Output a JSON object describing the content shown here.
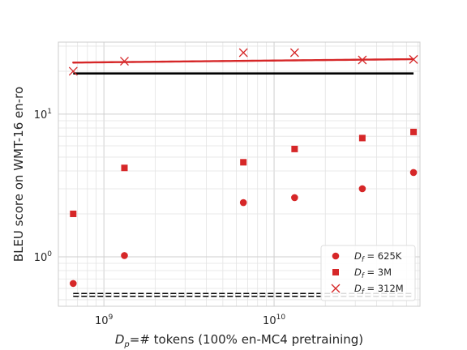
{
  "chart_data": {
    "type": "scatter",
    "xlabel_main": "D",
    "xlabel_sub": "p",
    "xlabel_rest": "=# tokens (100% en-MC4 pretraining)",
    "ylabel": "BLEU score on WMT-16 en-ro",
    "x_scale": "log",
    "y_scale": "log",
    "xlim": [
      540000000,
      72000000000
    ],
    "ylim": [
      0.45,
      32
    ],
    "x_ticks": [
      {
        "value": 1000000000,
        "base": "10",
        "exp": "9"
      },
      {
        "value": 10000000000,
        "base": "10",
        "exp": "10"
      }
    ],
    "y_ticks": [
      {
        "value": 1,
        "base": "10",
        "exp": "0"
      },
      {
        "value": 10,
        "base": "10",
        "exp": "1"
      }
    ],
    "grid": true,
    "legend_position": "lower-right",
    "series": [
      {
        "name_main": "D",
        "name_sub": "f",
        "name_rest": " = 625K",
        "marker": "circle",
        "color": "#d62728",
        "points": [
          {
            "x": 660000000,
            "y": 0.65
          },
          {
            "x": 1320000000,
            "y": 1.02
          },
          {
            "x": 6600000000,
            "y": 2.4
          },
          {
            "x": 13200000000,
            "y": 2.6
          },
          {
            "x": 33000000000,
            "y": 3.0
          },
          {
            "x": 66000000000,
            "y": 3.9
          }
        ],
        "fit": {
          "style": "dotted",
          "width": 2.6,
          "a": -14.43,
          "b": 5.51,
          "c": 0.1414
        },
        "baseline": {
          "y": 0.54,
          "style": "dashed-black-box",
          "width": 3
        }
      },
      {
        "name_main": "D",
        "name_sub": "f",
        "name_rest": " = 3M",
        "marker": "square",
        "color": "#d62728",
        "points": [
          {
            "x": 660000000,
            "y": 2.0
          },
          {
            "x": 1320000000,
            "y": 4.2
          },
          {
            "x": 6600000000,
            "y": 4.6
          },
          {
            "x": 13200000000,
            "y": 5.7
          },
          {
            "x": 33000000000,
            "y": 6.8
          },
          {
            "x": 66000000000,
            "y": 7.5
          }
        ],
        "fit": {
          "style": "dashed",
          "width": 2.6,
          "a": -11.65,
          "b": 4.4,
          "c": 0.1445
        },
        "baseline": {
          "y": 0.54,
          "style": "dashed-black-box",
          "width": 3
        }
      },
      {
        "name_main": "D",
        "name_sub": "f",
        "name_rest": " = 312M",
        "marker": "x",
        "color": "#d62728",
        "points": [
          {
            "x": 660000000,
            "y": 20.0
          },
          {
            "x": 1320000000,
            "y": 23.5
          },
          {
            "x": 6600000000,
            "y": 27.0
          },
          {
            "x": 13200000000,
            "y": 27.0
          },
          {
            "x": 33000000000,
            "y": 24.0
          },
          {
            "x": 66000000000,
            "y": 24.2
          }
        ],
        "fit": {
          "style": "solid",
          "linear_log": true,
          "y_start": 23.0,
          "y_end": 24.3,
          "width": 2.4
        },
        "baseline": {
          "y": 19.3,
          "style": "solid-black",
          "width": 2.6
        }
      }
    ]
  }
}
